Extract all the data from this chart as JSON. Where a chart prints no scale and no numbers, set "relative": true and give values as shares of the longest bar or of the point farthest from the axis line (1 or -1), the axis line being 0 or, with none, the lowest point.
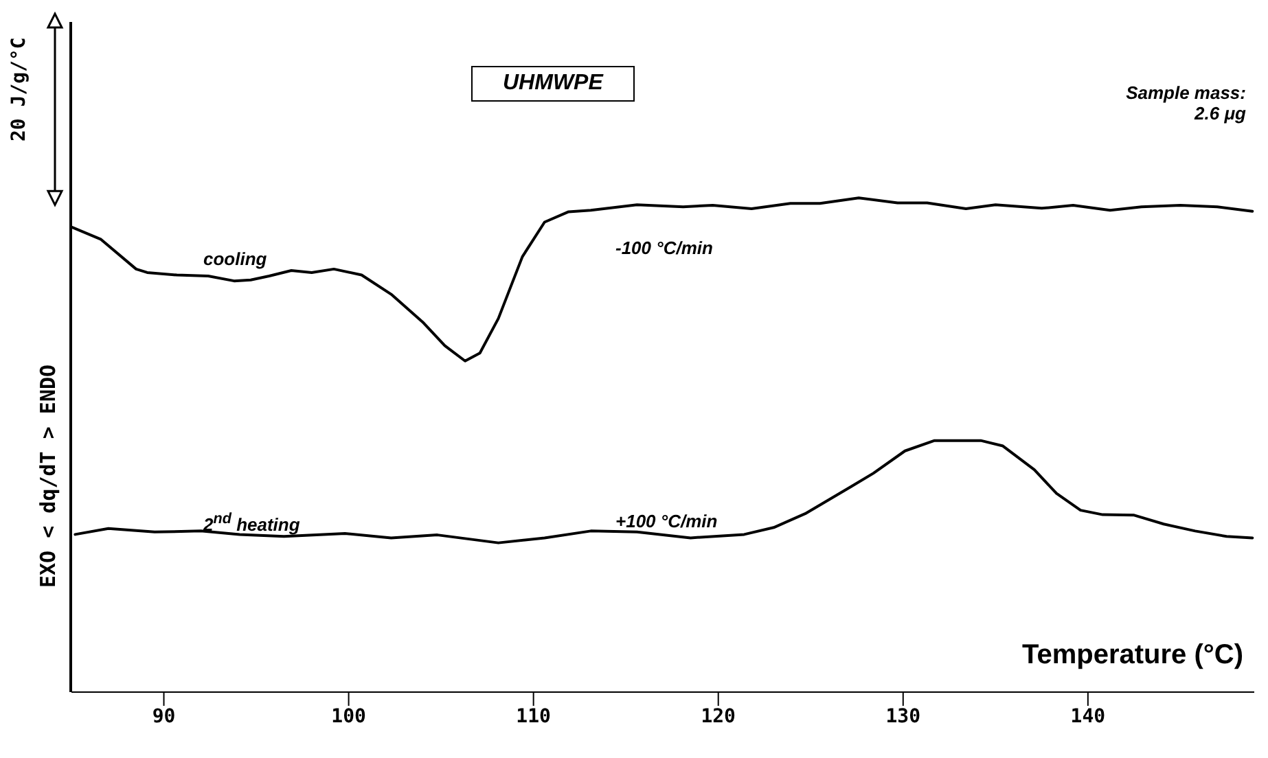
{
  "chart_data": {
    "type": "line",
    "relative": true,
    "xlabel": "Temperature (°C)",
    "ylabel": "EXO < dq/dT > ENDO",
    "xlim": [
      85,
      149
    ],
    "xticks": [
      90,
      100,
      110,
      120,
      130,
      140
    ],
    "marker": "none",
    "line_style": "solid",
    "grid": false,
    "legend": false,
    "annotations": [
      "UHMWPE",
      "Sample mass: 2.6 μg",
      "-100 °C/min",
      "+100 °C/min",
      "20 J/g/°C"
    ],
    "series": [
      {
        "name": "cooling",
        "color": "#000000",
        "x": [
          85.0,
          86.6,
          88.5,
          89.1,
          90.7,
          92.4,
          93.8,
          94.7,
          95.7,
          96.9,
          98.0,
          99.2,
          100.7,
          102.3,
          104.0,
          105.2,
          106.3,
          107.1,
          108.1,
          109.4,
          110.6,
          111.9,
          113.1,
          115.6,
          118.1,
          119.7,
          121.8,
          123.9,
          125.5,
          127.6,
          129.7,
          131.3,
          133.4,
          135.0,
          137.5,
          139.2,
          141.2,
          142.9,
          145.0,
          147.0,
          148.9
        ],
        "values": [
          0.941,
          0.916,
          0.856,
          0.849,
          0.844,
          0.842,
          0.832,
          0.834,
          0.842,
          0.853,
          0.849,
          0.856,
          0.844,
          0.805,
          0.749,
          0.701,
          0.67,
          0.686,
          0.756,
          0.881,
          0.951,
          0.972,
          0.975,
          0.986,
          0.982,
          0.985,
          0.978,
          0.989,
          0.989,
          1.0,
          0.99,
          0.99,
          0.978,
          0.986,
          0.979,
          0.985,
          0.975,
          0.982,
          0.985,
          0.982,
          0.973
        ]
      },
      {
        "name": "2$^{nd}$ heating",
        "color": "#000000",
        "x": [
          85.2,
          87.0,
          89.5,
          92.0,
          94.1,
          96.5,
          99.8,
          102.3,
          104.8,
          108.1,
          110.6,
          113.1,
          115.6,
          118.5,
          121.4,
          123.0,
          124.7,
          127.2,
          128.4,
          130.1,
          131.7,
          134.2,
          135.4,
          137.1,
          138.3,
          139.6,
          140.8,
          142.5,
          144.1,
          145.8,
          147.5,
          148.9
        ],
        "values": [
          0.319,
          0.331,
          0.324,
          0.326,
          0.319,
          0.315,
          0.321,
          0.312,
          0.318,
          0.302,
          0.312,
          0.326,
          0.324,
          0.312,
          0.319,
          0.333,
          0.361,
          0.416,
          0.443,
          0.488,
          0.509,
          0.509,
          0.498,
          0.45,
          0.402,
          0.368,
          0.359,
          0.358,
          0.34,
          0.326,
          0.315,
          0.312
        ]
      }
    ]
  }
}
